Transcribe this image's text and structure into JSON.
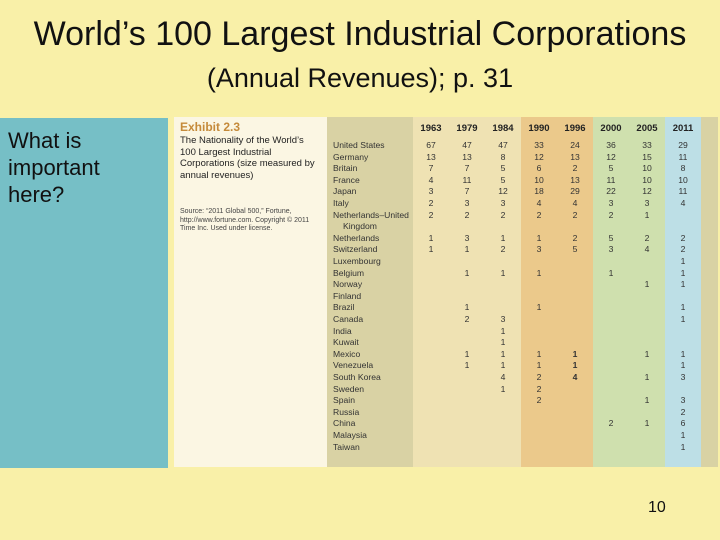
{
  "slide": {
    "title": "World’s 100 Largest Industrial Corporations",
    "subtitle": "(Annual Revenues); p. 31",
    "left_question": "What is\nimportant\nhere?",
    "page_number": "10"
  },
  "exhibit": {
    "number": "Exhibit 2.3",
    "title": "The Nationality of the World’s 100 Largest Industrial Corporations (size measured by annual revenues)",
    "source": "Source: “2011 Global 500,” Fortune, http://www.fortune.com. Copyright © 2011 Time Inc. Used under license.",
    "colors": {
      "table_bg": "#d9d2a4",
      "band_light": "#efe2b3",
      "band_orange": "#ebc98b",
      "band_green": "#cfe0ae",
      "band_blue": "#bddfe6"
    },
    "years": [
      "1963",
      "1979",
      "1984",
      "1990",
      "1996",
      "2000",
      "2005",
      "2011"
    ],
    "rows": [
      {
        "country": "United States",
        "values": [
          "67",
          "47",
          "47",
          "33",
          "24",
          "36",
          "33",
          "29"
        ]
      },
      {
        "country": "Germany",
        "values": [
          "13",
          "13",
          "8",
          "12",
          "13",
          "12",
          "15",
          "11"
        ]
      },
      {
        "country": "Britain",
        "values": [
          "7",
          "7",
          "5",
          "6",
          "2",
          "5",
          "10",
          "8"
        ]
      },
      {
        "country": "France",
        "values": [
          "4",
          "11",
          "5",
          "10",
          "13",
          "11",
          "10",
          "10"
        ]
      },
      {
        "country": "Japan",
        "values": [
          "3",
          "7",
          "12",
          "18",
          "29",
          "22",
          "12",
          "11"
        ]
      },
      {
        "country": "Italy",
        "values": [
          "2",
          "3",
          "3",
          "4",
          "4",
          "3",
          "3",
          "4"
        ]
      },
      {
        "country": "Netherlands–United",
        "values": [
          "2",
          "2",
          "2",
          "2",
          "2",
          "2",
          "1",
          ""
        ]
      },
      {
        "country": "Kingdom",
        "values": [
          "",
          "",
          "",
          "",
          "",
          "",
          "",
          ""
        ]
      },
      {
        "country": "Netherlands",
        "values": [
          "1",
          "3",
          "1",
          "1",
          "2",
          "5",
          "2",
          "2"
        ]
      },
      {
        "country": "Switzerland",
        "values": [
          "1",
          "1",
          "2",
          "3",
          "5",
          "3",
          "4",
          "2"
        ]
      },
      {
        "country": "Luxembourg",
        "values": [
          "",
          "",
          "",
          "",
          "",
          "",
          "",
          "1"
        ]
      },
      {
        "country": "Belgium",
        "values": [
          "",
          "1",
          "1",
          "1",
          "",
          "1",
          "",
          "1"
        ]
      },
      {
        "country": "Norway",
        "values": [
          "",
          "",
          "",
          "",
          "",
          "",
          "1",
          "1"
        ]
      },
      {
        "country": "Finland",
        "values": [
          "",
          "",
          "",
          "",
          "",
          "",
          "",
          ""
        ]
      },
      {
        "country": "Brazil",
        "values": [
          "",
          "1",
          "",
          "1",
          "",
          "",
          "",
          "1"
        ]
      },
      {
        "country": "Canada",
        "values": [
          "",
          "2",
          "3",
          "",
          "",
          "",
          "",
          "1"
        ]
      },
      {
        "country": "India",
        "values": [
          "",
          "",
          "1",
          "",
          "",
          "",
          "",
          ""
        ]
      },
      {
        "country": "Kuwait",
        "values": [
          "",
          "",
          "1",
          "",
          "",
          "",
          "",
          ""
        ]
      },
      {
        "country": "Mexico",
        "values": [
          "",
          "1",
          "1",
          "1",
          "1",
          "",
          "1",
          "1"
        ]
      },
      {
        "country": "Venezuela",
        "values": [
          "",
          "1",
          "1",
          "1",
          "1",
          "",
          "",
          "1"
        ]
      },
      {
        "country": "South Korea",
        "values": [
          "",
          "",
          "4",
          "2",
          "4",
          "",
          "1",
          "3"
        ]
      },
      {
        "country": "Sweden",
        "values": [
          "",
          "",
          "1",
          "2",
          "",
          "",
          "",
          ""
        ]
      },
      {
        "country": "Spain",
        "values": [
          "",
          "",
          "",
          "2",
          "",
          "",
          "1",
          "3"
        ]
      },
      {
        "country": "Russia",
        "values": [
          "",
          "",
          "",
          "",
          "",
          "",
          "",
          "2"
        ]
      },
      {
        "country": "China",
        "values": [
          "",
          "",
          "",
          "",
          "",
          "2",
          "1",
          "6"
        ]
      },
      {
        "country": "Malaysia",
        "values": [
          "",
          "",
          "",
          "",
          "",
          "",
          "",
          "1"
        ]
      },
      {
        "country": "Taiwan",
        "values": [
          "",
          "",
          "",
          "",
          "",
          "",
          "",
          "1"
        ]
      }
    ]
  }
}
